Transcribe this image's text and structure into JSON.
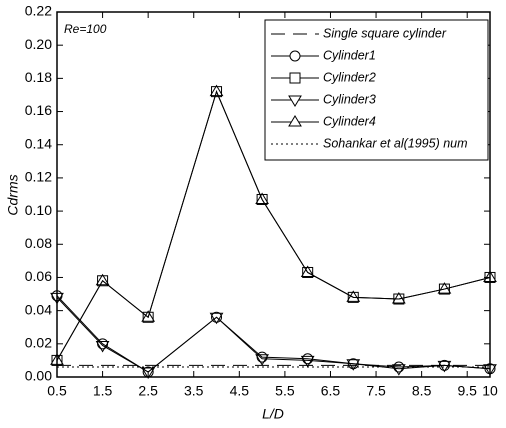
{
  "chart_data": {
    "type": "line",
    "x_label": "L/D",
    "y_label": "Cdrms",
    "annotation": "Re=100",
    "x": [
      0.5,
      1.5,
      2.5,
      4,
      5,
      6,
      7,
      8,
      9,
      10
    ],
    "xlim": [
      0.5,
      10
    ],
    "xticks": [
      0.5,
      1.5,
      2.5,
      3.5,
      4.5,
      5.5,
      6.5,
      7.5,
      8.5,
      9.5,
      10
    ],
    "ylim": [
      0,
      0.22
    ],
    "yticks": [
      {
        "value": 0,
        "label": "0.00"
      },
      0.02,
      0.04,
      0.06,
      0.08,
      {
        "value": 0.1,
        "label": "0.10"
      },
      0.12,
      0.14,
      0.16,
      0.18,
      {
        "value": 0.2,
        "label": "0.20"
      },
      0.22
    ],
    "series": [
      {
        "name": "Single square cylinder",
        "color": "#000000",
        "style": "dashed",
        "marker": "none",
        "values": [
          0.007,
          0.007,
          0.007,
          0.007,
          0.007,
          0.007,
          0.007,
          0.007,
          0.007,
          0.007
        ]
      },
      {
        "name": "Cylinder1",
        "color": "#000000",
        "style": "solid",
        "marker": "circle",
        "values": [
          0.049,
          0.02,
          0.003,
          0.036,
          0.012,
          0.011,
          0.008,
          0.006,
          0.007,
          0.005
        ]
      },
      {
        "name": "Cylinder2",
        "color": "#000000",
        "style": "solid",
        "marker": "square",
        "values": [
          0.01,
          0.058,
          0.036,
          0.172,
          0.107,
          0.063,
          0.048,
          0.047,
          0.053,
          0.06
        ]
      },
      {
        "name": "Cylinder3",
        "color": "#000000",
        "style": "solid",
        "marker": "triangle-down",
        "values": [
          0.048,
          0.019,
          0.003,
          0.036,
          0.011,
          0.01,
          0.008,
          0.005,
          0.007,
          0.005
        ]
      },
      {
        "name": "Cylinder4",
        "color": "#000000",
        "style": "solid",
        "marker": "triangle-up",
        "values": [
          0.01,
          0.058,
          0.036,
          0.172,
          0.107,
          0.063,
          0.048,
          0.047,
          0.053,
          0.06
        ]
      },
      {
        "name": "Sohankar et al(1995) num",
        "color": "#000000",
        "style": "dotted",
        "marker": "none",
        "values": [
          0.006,
          0.006,
          0.006,
          0.006,
          0.006,
          0.006,
          0.006,
          0.006,
          0.006,
          0.006
        ]
      }
    ],
    "legend": "upper right"
  }
}
